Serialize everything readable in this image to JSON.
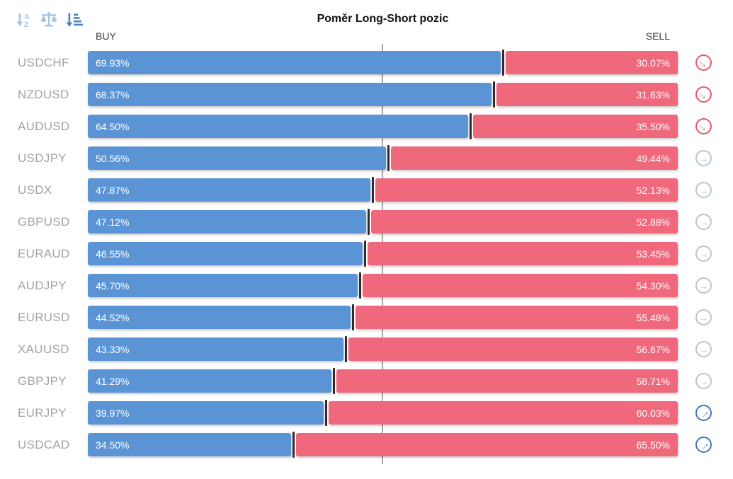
{
  "title": "Poměr Long-Short pozic",
  "axis": {
    "buy_label": "BUY",
    "sell_label": "SELL"
  },
  "toolbar": {
    "icons": [
      {
        "name": "sort-alpha-desc-icon",
        "state": "inactive",
        "color": "#a7c4e2"
      },
      {
        "name": "balance-scale-icon",
        "state": "inactive",
        "color": "#a7c4e2"
      },
      {
        "name": "sort-amount-desc-icon",
        "state": "active",
        "color": "#4d80c0"
      }
    ]
  },
  "colors": {
    "buy_bar": "#5b94d5",
    "sell_bar": "#f0687b",
    "divider_marker": "#3a262b",
    "center_line": "#a6a6a6",
    "pair_label": "#a3a3a3",
    "trend_down": "#ed5565",
    "trend_right": "#b7c5d2",
    "trend_up": "#3b76c8"
  },
  "chart_data": {
    "type": "bar",
    "subtype": "horizontal-stacked-100pct",
    "title": "Poměr Long-Short pozic",
    "xlabel": "",
    "ylabel": "",
    "xlim": [
      0,
      100
    ],
    "grid": false,
    "center_reference_line_pct": 50,
    "categories": [
      "USDCHF",
      "NZDUSD",
      "AUDUSD",
      "USDJPY",
      "USDX",
      "GBPUSD",
      "EURAUD",
      "AUDJPY",
      "EURUSD",
      "XAUUSD",
      "GBPJPY",
      "EURJPY",
      "USDCAD"
    ],
    "series": [
      {
        "name": "BUY",
        "color": "#5b94d5",
        "values": [
          69.93,
          68.37,
          64.5,
          50.56,
          47.87,
          47.12,
          46.55,
          45.7,
          44.52,
          43.33,
          41.29,
          39.97,
          34.5
        ]
      },
      {
        "name": "SELL",
        "color": "#f0687b",
        "values": [
          30.07,
          31.63,
          35.5,
          49.44,
          52.13,
          52.88,
          53.45,
          54.3,
          55.48,
          56.67,
          58.71,
          60.03,
          65.5
        ]
      }
    ],
    "trend": [
      "down",
      "down",
      "down",
      "right",
      "right",
      "right",
      "right",
      "right",
      "right",
      "right",
      "right",
      "up",
      "up"
    ],
    "legend": [
      "BUY",
      "SELL"
    ]
  }
}
